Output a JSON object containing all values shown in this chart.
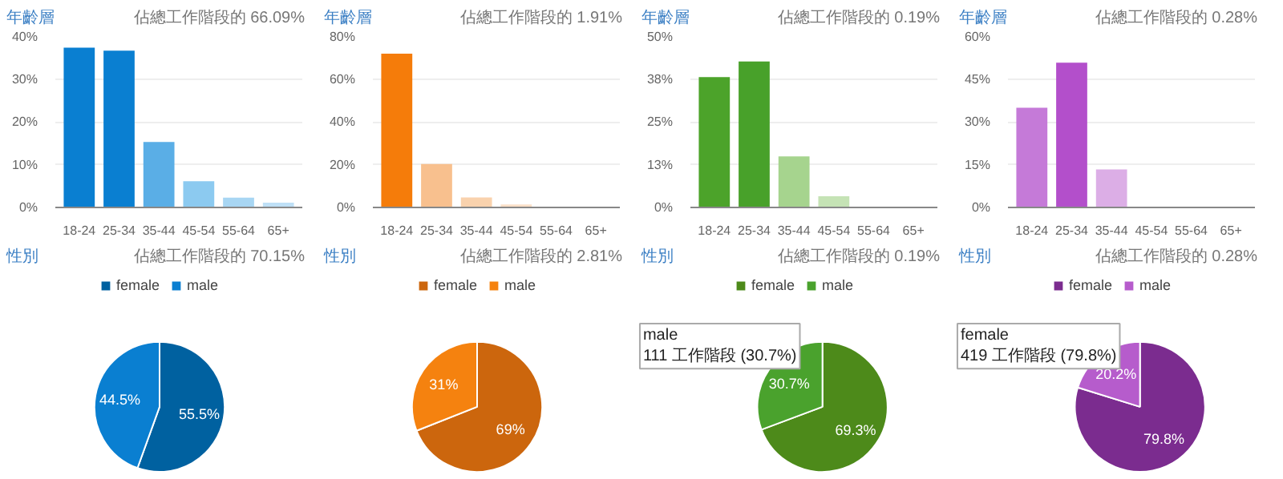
{
  "chart_data": [
    {
      "type": "bar",
      "title": "年齡層",
      "subtitle": "佔總工作階段的 66.09%",
      "categories": [
        "18-24",
        "25-34",
        "35-44",
        "45-54",
        "55-64",
        "65+"
      ],
      "values": [
        37.3,
        36.6,
        15.3,
        6.1,
        2.3,
        1.1
      ],
      "colors": [
        "#0a7fd1",
        "#0a7fd1",
        "#5aaee6",
        "#8ccaf0",
        "#a8d6f3",
        "#bfe0f6"
      ],
      "ylim": [
        0,
        40
      ],
      "yticks": [
        {
          "value": 0,
          "label": "0%"
        },
        {
          "value": 10,
          "label": "10%"
        },
        {
          "value": 20,
          "label": "20%"
        },
        {
          "value": 30,
          "label": "30%"
        },
        {
          "value": 40,
          "label": "40%"
        }
      ],
      "grid": "y"
    },
    {
      "type": "bar",
      "title": "年齡層",
      "subtitle": "佔總工作階段的 1.91%",
      "categories": [
        "18-24",
        "25-34",
        "35-44",
        "45-54",
        "55-64",
        "65+"
      ],
      "values": [
        71.8,
        20.3,
        4.7,
        1.4,
        0,
        0
      ],
      "colors": [
        "#f57c0a",
        "#f8c08e",
        "#f9d2ad",
        "#fbe0c8",
        "#fbe0c8",
        "#fbe0c8"
      ],
      "ylim": [
        0,
        80
      ],
      "yticks": [
        {
          "value": 0,
          "label": "0%"
        },
        {
          "value": 20,
          "label": "20%"
        },
        {
          "value": 40,
          "label": "40%"
        },
        {
          "value": 60,
          "label": "60%"
        },
        {
          "value": 80,
          "label": "80%"
        }
      ],
      "grid": "y"
    },
    {
      "type": "bar",
      "title": "年齡層",
      "subtitle": "佔總工作階段的 0.19%",
      "categories": [
        "18-24",
        "25-34",
        "35-44",
        "45-54",
        "55-64",
        "65+"
      ],
      "values": [
        38.0,
        42.6,
        14.9,
        3.3,
        0,
        0
      ],
      "colors": [
        "#4ca32a",
        "#48a12a",
        "#a6d48e",
        "#c5e3b5",
        "#c5e3b5",
        "#c5e3b5"
      ],
      "ylim": [
        0,
        50
      ],
      "yticks": [
        {
          "value": 0,
          "label": "0%"
        },
        {
          "value": 12.5,
          "label": "13%"
        },
        {
          "value": 25,
          "label": "25%"
        },
        {
          "value": 37.5,
          "label": "38%"
        },
        {
          "value": 50,
          "label": "50%"
        }
      ],
      "grid": "y"
    },
    {
      "type": "bar",
      "title": "年齡層",
      "subtitle": "佔總工作階段的 0.28%",
      "categories": [
        "18-24",
        "25-34",
        "35-44",
        "45-54",
        "55-64",
        "65+"
      ],
      "values": [
        34.9,
        50.7,
        13.3,
        0,
        0,
        0
      ],
      "colors": [
        "#c57ad8",
        "#b34fcb",
        "#dcaee6",
        "#e8cdef",
        "#e8cdef",
        "#e8cdef"
      ],
      "ylim": [
        0,
        60
      ],
      "yticks": [
        {
          "value": 0,
          "label": "0%"
        },
        {
          "value": 15,
          "label": "15%"
        },
        {
          "value": 30,
          "label": "30%"
        },
        {
          "value": 45,
          "label": "45%"
        },
        {
          "value": 60,
          "label": "60%"
        }
      ],
      "grid": "y"
    },
    {
      "type": "pie",
      "title": "性別",
      "subtitle": "佔總工作階段的 70.15%",
      "categories": [
        "female",
        "male"
      ],
      "values": [
        55.5,
        44.5
      ],
      "value_labels": [
        "55.5%",
        "44.5%"
      ],
      "colors": [
        "#0061a0",
        "#0a7fd1"
      ],
      "legend": "top"
    },
    {
      "type": "pie",
      "title": "性別",
      "subtitle": "佔總工作階段的 2.81%",
      "categories": [
        "female",
        "male"
      ],
      "values": [
        69,
        31
      ],
      "value_labels": [
        "69%",
        "31%"
      ],
      "colors": [
        "#cc660d",
        "#f5820f"
      ],
      "legend": "top"
    },
    {
      "type": "pie",
      "title": "性別",
      "subtitle": "佔總工作階段的 0.19%",
      "categories": [
        "female",
        "male"
      ],
      "values": [
        69.3,
        30.7
      ],
      "value_labels": [
        "69.3%",
        "30.7%"
      ],
      "colors": [
        "#4d8a1a",
        "#4aa22d"
      ],
      "legend": "top",
      "annotations": [
        "male\n111 工作階段 (30.7%)"
      ]
    },
    {
      "type": "pie",
      "title": "性別",
      "subtitle": "佔總工作階段的 0.28%",
      "categories": [
        "female",
        "male"
      ],
      "values": [
        79.8,
        20.2
      ],
      "value_labels": [
        "79.8%",
        "20.2%"
      ],
      "colors": [
        "#7b2c8f",
        "#b65ccc"
      ],
      "legend": "top",
      "annotations": [
        "female\n419 工作階段 (79.8%)"
      ]
    }
  ]
}
